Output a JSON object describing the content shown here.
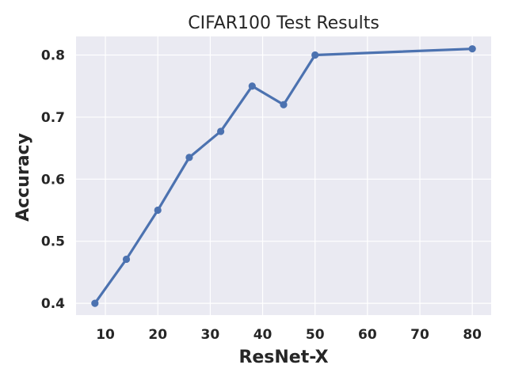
{
  "chart_data": {
    "type": "line",
    "title": "CIFAR100 Test Results",
    "xlabel": "ResNet-X",
    "ylabel": "Accuracy",
    "x": [
      8,
      14,
      20,
      26,
      32,
      38,
      44,
      50,
      80
    ],
    "y": [
      0.4,
      0.471,
      0.55,
      0.635,
      0.677,
      0.75,
      0.72,
      0.8,
      0.81
    ],
    "xlim": [
      4.4,
      83.6
    ],
    "ylim": [
      0.381,
      0.83
    ],
    "xticks": [
      "10",
      "20",
      "30",
      "40",
      "50",
      "60",
      "70",
      "80"
    ],
    "yticks": [
      "0.4",
      "0.5",
      "0.6",
      "0.7",
      "0.8"
    ],
    "grid": true,
    "colors": {
      "line": "#4c72b0",
      "background": "#eaeaf2",
      "grid": "#ffffff"
    }
  }
}
